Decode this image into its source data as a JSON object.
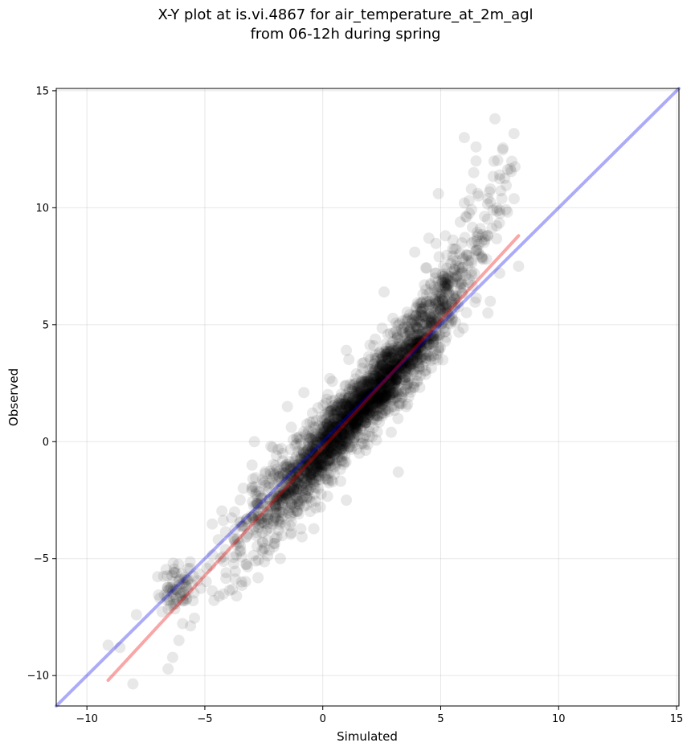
{
  "chart_data": {
    "type": "scatter",
    "title": "X-Y plot at is.vi.4867 for air_temperature_at_2m_agl",
    "subtitle": "from 06-12h during spring",
    "xlabel": "Simulated",
    "ylabel": "Observed",
    "xlim": [
      -11.3,
      15.1
    ],
    "ylim": [
      -11.3,
      15.1
    ],
    "xticks": [
      -10,
      -5,
      0,
      5,
      10,
      15
    ],
    "yticks": [
      -10,
      -5,
      0,
      5,
      10,
      15
    ],
    "xtick_labels": [
      "−10",
      "−5",
      "0",
      "5",
      "10",
      "15"
    ],
    "ytick_labels": [
      "−10",
      "−5",
      "0",
      "5",
      "10",
      "15"
    ],
    "grid": true,
    "point_color": "#000000",
    "point_alpha": 0.09,
    "reference_line": {
      "color": "#0000ee",
      "alpha": 0.33,
      "x": [
        -11.3,
        15.1
      ],
      "y": [
        -11.3,
        15.1
      ]
    },
    "fit_line": {
      "color": "#ee0000",
      "alpha": 0.35,
      "x": [
        -9.1,
        8.3
      ],
      "y": [
        -10.2,
        8.8
      ]
    },
    "outliers": [
      [
        7.3,
        13.8
      ],
      [
        6.0,
        13.0
      ],
      [
        6.5,
        12.6
      ],
      [
        6.5,
        12.0
      ],
      [
        7.5,
        11.4
      ],
      [
        6.4,
        11.5
      ],
      [
        6.3,
        10.8
      ],
      [
        6.6,
        10.5
      ],
      [
        4.9,
        10.6
      ],
      [
        7.5,
        9.9
      ],
      [
        6.2,
        10.3
      ],
      [
        6.0,
        10.2
      ],
      [
        8.3,
        7.5
      ],
      [
        7.1,
        6.0
      ],
      [
        7.0,
        5.5
      ],
      [
        3.2,
        -1.3
      ],
      [
        1.0,
        -2.5
      ],
      [
        -0.1,
        -2.8
      ],
      [
        -1.8,
        -5.0
      ],
      [
        -6.1,
        -8.5
      ],
      [
        -2.2,
        -0.2
      ],
      [
        -1.5,
        1.5
      ],
      [
        0.3,
        2.7
      ],
      [
        -3.0,
        -1.0
      ],
      [
        -5.5,
        -6.8
      ],
      [
        -8.6,
        -8.8
      ],
      [
        -9.1,
        -8.7
      ],
      [
        -7.9,
        -7.4
      ],
      [
        -4.1,
        -5.6
      ],
      [
        2.6,
        6.4
      ],
      [
        3.9,
        8.1
      ],
      [
        4.5,
        8.7
      ],
      [
        5.2,
        8.8
      ],
      [
        5.9,
        8.5
      ],
      [
        6.1,
        9.6
      ],
      [
        6.8,
        7.8
      ],
      [
        7.5,
        7.2
      ],
      [
        -0.8,
        2.1
      ],
      [
        -2.9,
        0.0
      ],
      [
        1.0,
        3.9
      ],
      [
        2.9,
        0.4
      ],
      [
        4.0,
        2.6
      ],
      [
        3.6,
        1.6
      ]
    ]
  }
}
